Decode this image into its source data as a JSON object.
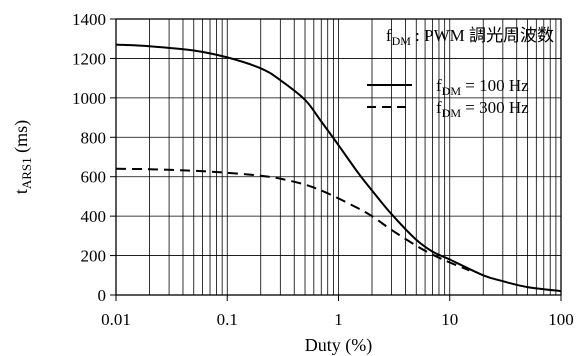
{
  "chart_data": {
    "type": "line",
    "xscale": "log",
    "xlim": [
      0.01,
      100
    ],
    "ylim": [
      0,
      1400
    ],
    "xticks": [
      0.01,
      0.1,
      1,
      10,
      100
    ],
    "xtick_labels": [
      "0.01",
      "0.1",
      "1",
      "10",
      "100"
    ],
    "yticks": [
      0,
      200,
      400,
      600,
      800,
      1000,
      1200,
      1400
    ],
    "ytick_labels": [
      "0",
      "200",
      "400",
      "600",
      "800",
      "1000",
      "1200",
      "1400"
    ],
    "grid": true,
    "xlabel": "Duty (%)",
    "ylabel": {
      "main": "t",
      "sub": "ARS1",
      "unit": " (ms)"
    },
    "annotation": {
      "main": "f",
      "sub": "DM",
      "text": " : PWM 調光周波数"
    },
    "legend_position": "top-right",
    "series": [
      {
        "name": {
          "main": "f",
          "sub": "DM",
          "text": " = 100 Hz"
        },
        "style": "solid",
        "x": [
          0.01,
          0.02,
          0.05,
          0.1,
          0.2,
          0.3,
          0.5,
          0.7,
          1,
          1.5,
          2,
          3,
          5,
          7,
          10,
          20,
          30,
          50,
          100
        ],
        "y": [
          1270,
          1262,
          1240,
          1205,
          1150,
          1090,
          990,
          880,
          760,
          620,
          530,
          410,
          280,
          220,
          180,
          100,
          70,
          40,
          20
        ]
      },
      {
        "name": {
          "main": "f",
          "sub": "DM",
          "text": " = 300 Hz"
        },
        "style": "dashed",
        "x": [
          0.01,
          0.02,
          0.05,
          0.1,
          0.2,
          0.3,
          0.5,
          0.7,
          1,
          1.5,
          2,
          3,
          5,
          7,
          10,
          15
        ],
        "y": [
          640,
          638,
          630,
          620,
          605,
          590,
          560,
          530,
          490,
          440,
          400,
          330,
          250,
          205,
          165,
          125
        ]
      }
    ]
  }
}
